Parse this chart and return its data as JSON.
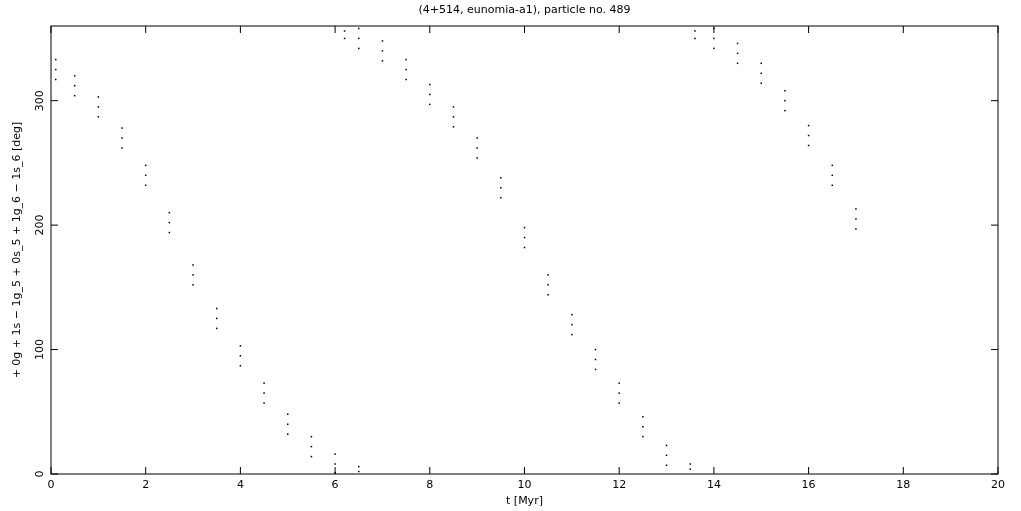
{
  "chart_data": {
    "type": "scatter",
    "title": "(4+514, eunomia-a1), particle no. 489",
    "xlabel": "t [Myr]",
    "ylabel": "+ 0g + 1s − 1g_5 + 0s_5 + 1g_6 − 1s_6 [deg]",
    "xlim": [
      0,
      20
    ],
    "xticks": [
      0,
      2,
      4,
      6,
      8,
      10,
      12,
      14,
      16,
      18,
      20
    ],
    "ylim": [
      0,
      360
    ],
    "yticks": [
      0,
      100,
      200,
      300
    ],
    "grid": false,
    "marker": "square",
    "series": [
      {
        "color": "#000000",
        "x": [
          0.1,
          0.1,
          0.1,
          0.5,
          0.5,
          0.5,
          1,
          1,
          1,
          1.5,
          1.5,
          1.5,
          2,
          2,
          2,
          2.5,
          2.5,
          2.5,
          3,
          3,
          3,
          3.5,
          3.5,
          3.5,
          4,
          4,
          4,
          4.5,
          4.5,
          4.5,
          5,
          5,
          5,
          5.5,
          5.5,
          5.5,
          6,
          6,
          6,
          6.5,
          6.5,
          6.2,
          6.2,
          6.5,
          6.5,
          6.5,
          7,
          7,
          7,
          7.5,
          7.5,
          7.5,
          8,
          8,
          8,
          8.5,
          8.5,
          8.5,
          9,
          9,
          9,
          9.5,
          9.5,
          9.5,
          10,
          10,
          10,
          10.5,
          10.5,
          10.5,
          11,
          11,
          11,
          11.5,
          11.5,
          11.5,
          12,
          12,
          12,
          12.5,
          12.5,
          12.5,
          13,
          13,
          13,
          13.5,
          13.5,
          13.6,
          13.6,
          14,
          14,
          14,
          14.5,
          14.5,
          14.5,
          15,
          15,
          15,
          15.5,
          15.5,
          15.5,
          16,
          16,
          16,
          16.5,
          16.5,
          16.5,
          17,
          17,
          17
        ],
        "values": [
          333,
          325,
          317,
          320,
          312,
          304,
          303,
          295,
          287,
          278,
          270,
          262,
          248,
          240,
          232,
          210,
          202,
          194,
          168,
          160,
          152,
          133,
          125,
          117,
          103,
          95,
          87,
          73,
          65,
          57,
          48,
          40,
          32,
          30,
          22,
          14,
          16,
          8,
          1,
          6,
          2,
          356,
          350,
          358,
          350,
          342,
          348,
          340,
          332,
          333,
          325,
          317,
          313,
          305,
          297,
          295,
          287,
          279,
          270,
          262,
          254,
          238,
          230,
          222,
          198,
          190,
          182,
          160,
          152,
          144,
          128,
          120,
          112,
          100,
          92,
          84,
          73,
          65,
          57,
          46,
          38,
          30,
          23,
          15,
          7,
          8,
          4,
          356,
          350,
          358,
          350,
          342,
          346,
          338,
          330,
          330,
          322,
          314,
          308,
          300,
          292,
          280,
          272,
          264,
          248,
          240,
          232,
          213,
          205,
          197
        ]
      }
    ]
  }
}
